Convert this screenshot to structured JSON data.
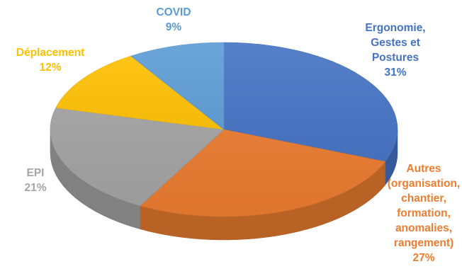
{
  "chart_data": {
    "type": "pie",
    "style": "3d",
    "title": "",
    "slices": [
      {
        "label": "Ergonomie, Gestes et Postures",
        "label_lines": [
          "Ergonomie,",
          "Gestes et",
          "Postures"
        ],
        "percent_label": "31%",
        "value": 31,
        "color": "#4472C4"
      },
      {
        "label": "Autres (organisation, chantier, formation, anomalies, rangement)",
        "label_lines": [
          "Autres",
          "(organisation,",
          "chantier,",
          "formation,",
          "anomalies,",
          "rangement)"
        ],
        "percent_label": "27%",
        "value": 27,
        "color": "#ED7D31"
      },
      {
        "label": "EPI",
        "label_lines": [
          "EPI"
        ],
        "percent_label": "21%",
        "value": 21,
        "color": "#A5A5A5"
      },
      {
        "label": "Déplacement",
        "label_lines": [
          "Déplacement"
        ],
        "percent_label": "12%",
        "value": 12,
        "color": "#FFC000"
      },
      {
        "label": "COVID",
        "label_lines": [
          "COVID"
        ],
        "percent_label": "9%",
        "value": 9,
        "color": "#5B9BD5"
      }
    ]
  }
}
